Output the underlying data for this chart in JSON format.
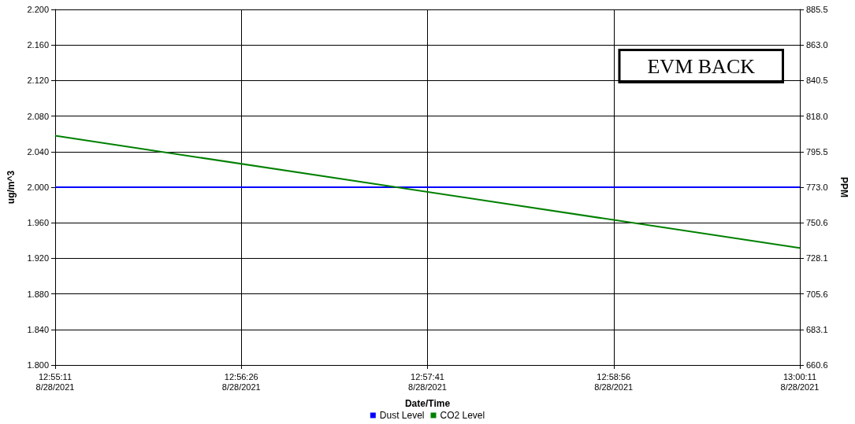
{
  "chart_data": {
    "type": "line",
    "xlabel": "Date/Time",
    "ylabel": "ug/m^3",
    "y2label": "PPM",
    "annotations": [
      "EVM BACK"
    ],
    "xlim": [
      "2021-08-28T12:55:11",
      "2021-08-28T13:00:11"
    ],
    "xticks": [
      {
        "value": "2021-08-28T12:55:11",
        "label": "12:55:11\n8/28/2021"
      },
      {
        "value": "2021-08-28T12:56:26",
        "label": "12:56:26\n8/28/2021"
      },
      {
        "value": "2021-08-28T12:57:41",
        "label": "12:57:41\n8/28/2021"
      },
      {
        "value": "2021-08-28T12:58:56",
        "label": "12:58:56\n8/28/2021"
      },
      {
        "value": "2021-08-28T13:00:11",
        "label": "13:00:11\n8/28/2021"
      }
    ],
    "ylim": [
      1.8,
      2.2
    ],
    "yticks": [
      {
        "value": 1.8,
        "label": "1.800"
      },
      {
        "value": 1.84,
        "label": "1.840"
      },
      {
        "value": 1.88,
        "label": "1.880"
      },
      {
        "value": 1.92,
        "label": "1.920"
      },
      {
        "value": 1.96,
        "label": "1.960"
      },
      {
        "value": 2.0,
        "label": "2.000"
      },
      {
        "value": 2.04,
        "label": "2.040"
      },
      {
        "value": 2.08,
        "label": "2.080"
      },
      {
        "value": 2.12,
        "label": "2.120"
      },
      {
        "value": 2.16,
        "label": "2.160"
      },
      {
        "value": 2.2,
        "label": "2.200"
      }
    ],
    "y2lim": [
      660.6,
      885.5
    ],
    "y2ticks": [
      660.6,
      683.1,
      705.6,
      728.1,
      750.6,
      {
        "value": 773,
        "label": "773.0"
      },
      795.5,
      {
        "value": 818,
        "label": "818.0"
      },
      840.5,
      {
        "value": 863,
        "label": "863.0"
      },
      885.5
    ],
    "x": [
      "2021-08-28T12:55:11",
      "2021-08-28T13:00:11"
    ],
    "series": [
      {
        "name": "Dust Level",
        "color": "#0000ff",
        "values": [
          2.0,
          2.0
        ]
      },
      {
        "name": "CO2 Level",
        "color": "#008000",
        "values": [
          805.6,
          734.6
        ],
        "axis": "y2"
      }
    ],
    "grid": true,
    "legend": "bottom",
    "marker": "none",
    "line_style": "solid"
  }
}
